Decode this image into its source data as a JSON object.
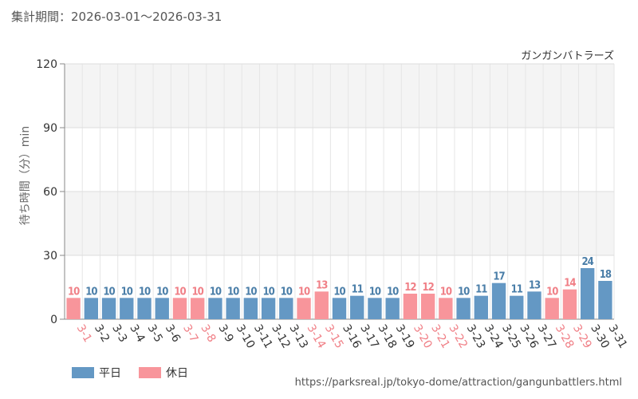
{
  "header": {
    "period_label": "集計期間：2026-03-01～2026-03-31"
  },
  "footer": {
    "source_url": "https://parksreal.jp/tokyo-dome/attraction/gangunbattlers.html"
  },
  "colors": {
    "weekday": "#6498c4",
    "holiday": "#f8959b",
    "weekday_text": "#4a7ea8",
    "holiday_text": "#f07f86"
  },
  "chart_data": {
    "type": "bar",
    "title": "ガンガンバトラーズ",
    "xlabel": "",
    "ylabel": "待ち時間（分）min",
    "ylim": [
      0,
      120
    ],
    "yticks": [
      0,
      30,
      60,
      90,
      120
    ],
    "grid": true,
    "legend_position": "bottom-left",
    "legend": [
      {
        "key": "weekday",
        "label": "平日"
      },
      {
        "key": "holiday",
        "label": "休日"
      }
    ],
    "categories": [
      "3-1",
      "3-2",
      "3-3",
      "3-4",
      "3-5",
      "3-6",
      "3-7",
      "3-8",
      "3-9",
      "3-10",
      "3-11",
      "3-12",
      "3-13",
      "3-14",
      "3-15",
      "3-16",
      "3-17",
      "3-18",
      "3-19",
      "3-20",
      "3-21",
      "3-22",
      "3-23",
      "3-24",
      "3-25",
      "3-26",
      "3-27",
      "3-28",
      "3-29",
      "3-30",
      "3-31"
    ],
    "values": [
      10,
      10,
      10,
      10,
      10,
      10,
      10,
      10,
      10,
      10,
      10,
      10,
      10,
      10,
      13,
      10,
      11,
      10,
      10,
      12,
      12,
      10,
      10,
      11,
      17,
      11,
      13,
      10,
      14,
      24,
      18
    ],
    "day_type": [
      "holiday",
      "weekday",
      "weekday",
      "weekday",
      "weekday",
      "weekday",
      "holiday",
      "holiday",
      "weekday",
      "weekday",
      "weekday",
      "weekday",
      "weekday",
      "holiday",
      "holiday",
      "weekday",
      "weekday",
      "weekday",
      "weekday",
      "holiday",
      "holiday",
      "holiday",
      "weekday",
      "weekday",
      "weekday",
      "weekday",
      "weekday",
      "holiday",
      "holiday",
      "weekday",
      "weekday"
    ]
  }
}
